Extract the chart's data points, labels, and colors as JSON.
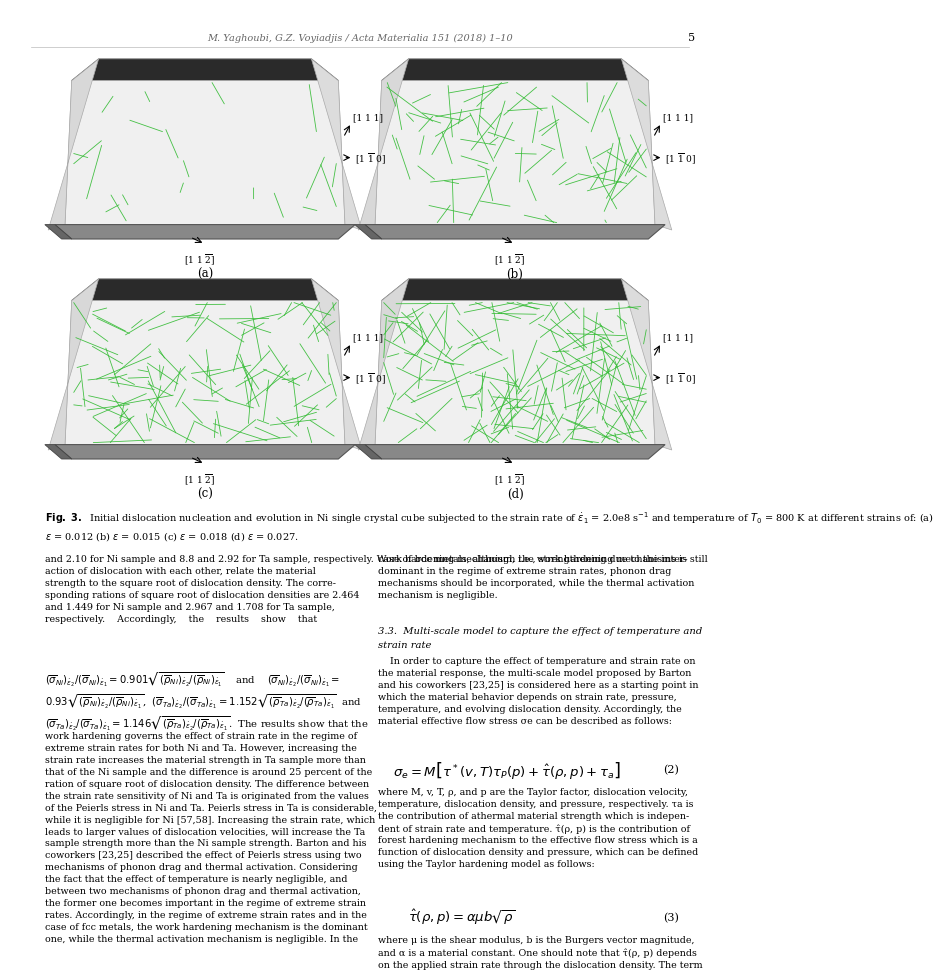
{
  "header_text": "M. Yaghoubi, G.Z. Voyiadjis / Acta Materialia 151 (2018) 1–10",
  "page_number": "5",
  "bg_color": "#ffffff",
  "header_color": "#666666",
  "panel_labels": [
    "(a)",
    "(b)",
    "(c)",
    "(d)"
  ],
  "fig_caption_bold": "Fig. 3.",
  "fig_caption_rest": " Initial dislocation nucleation and evolution in Ni single crystal cube subjected to the strain rate of ḡ₁ = 2.0e8 s⁻¹ and temperature of T₀ = 800 K at different strains of: (a) ε = 0.012 (b) ε = 0.015 (c) ε = 0.018 (d) ε = 0.027.",
  "left_text_1": "and 2.10 for Ni sample and 8.8 and 2.92 for Ta sample, respectively. Work hardening mechanism, i.e., strengthening due to the inter-action of dislocation with each other, relate the material strength to the square root of dislocation density. The corre-sponding rations of square root of dislocation densities are 2.464 and 1.449 for Ni sample and 2.967 and 1.708 for Ta sample, respectively.    Accordingly,    the    results    show    that",
  "left_text_2": "work hardening governs the effect of strain rate in the regime of extreme strain rates for both Ni and Ta. However, increasing the strain rate increases the material strength in Ta sample more than that of the Ni sample and the difference is around 25 percent of the ration of square root of dislocation density. The difference between the strain rate sensitivity of Ni and Ta is originated from the values of the Peierls stress in Ni and Ta. Peierls stress in Ta is considerable, while it is negligible for Ni [57,58]. Increasing the strain rate, which leads to larger values of dislocation velocities, will increase the Ta sample strength more than the Ni sample strength. Barton and his coworkers [23,25] described the effect of Peierls stress using two mechanisms of phonon drag and thermal activation. Considering the fact that the effect of temperature is nearly negligible, and between two mechanisms of phonon drag and thermal activation, the former one becomes important in the regime of extreme strain rates. Accordingly, in the regime of extreme strain rates and in the case of fcc metals, the work hardening mechanism is the dominant one, while the thermal activation mechanism is negligible. In the",
  "right_text_1": "case of bcc metals, although the work hardening mechanisms is still dominant in the regime of extreme strain rates, phonon drag mechanisms should be incorporated, while the thermal activation mechanism is negligible.",
  "sec33_title_1": "3.3.  Multi-scale model to capture the effect of temperature and",
  "sec33_title_2": "strain rate",
  "right_intro": "In order to capture the effect of temperature and strain rate on the material response, the multi-scale model proposed by Barton and his coworkers [23,25] is considered here as a starting point in which the material behavior depends on strain rate, pressure, temperature, and evolving dislocation density. Accordingly, the material effective flow stress σe can be described as follows:",
  "right_text_2": "where M, v, T, ρ, and p are the Taylor factor, dislocation velocity, temperature, dislocation density, and pressure, respectively. τa is the contribution of athermal material strength which is independent of strain rate and temperature. τ̂(ρ, p) is the contribution of forest hardening mechanism to the effective flow stress which is a function of dislocation density and pressure, which can be defined using the Taylor hardening model as follows:",
  "right_text_3": "where μ is the shear modulus, b is the Burgers vector magnitude, and α is a material constant. One should note that τ̂(ρ, p) depends on the applied strain rate through the dislocation density. The term"
}
